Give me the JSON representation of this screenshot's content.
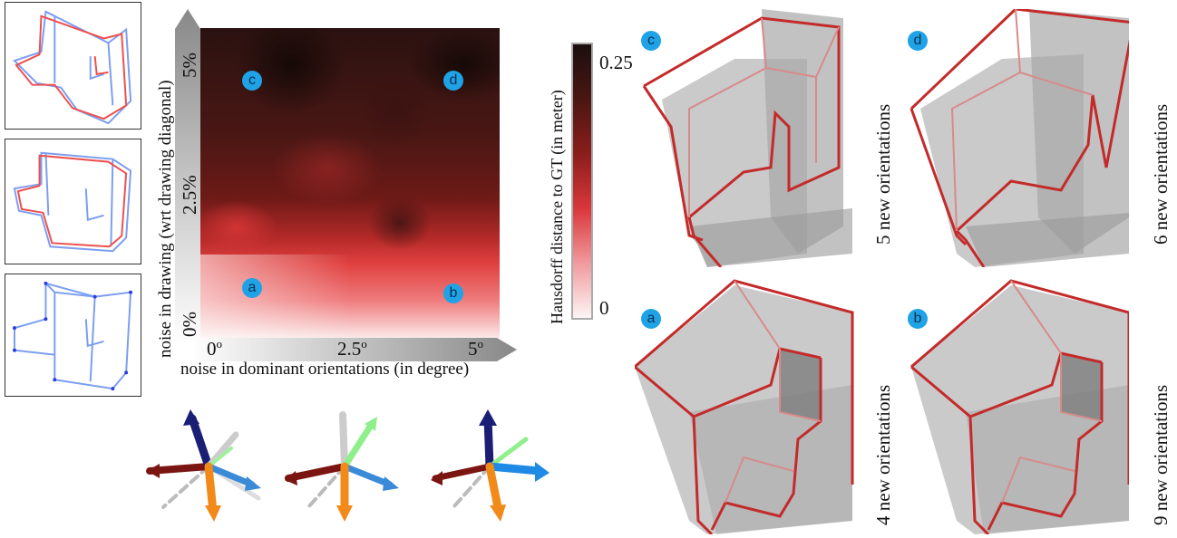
{
  "heatmap": {
    "y_axis_label": "noise in drawing (wrt drawing diagonal)",
    "x_axis_label": "noise in dominant orientations (in degree)",
    "y_ticks": [
      "0%",
      "2.5%",
      "5%"
    ],
    "x_ticks": [
      {
        "base": "0",
        "sup": "o"
      },
      {
        "base": "2.5",
        "sup": "o"
      },
      {
        "base": "5",
        "sup": "o"
      }
    ],
    "colorbar_label": "Hausdorff distance to GT (in meter)",
    "colorbar_max": "0.25",
    "colorbar_min": "0",
    "colors": {
      "dark": "#1a0f0e",
      "mid": "#d8373a",
      "light": "#fdf5f5",
      "marker": "#1fa3e6"
    },
    "markers": [
      "a",
      "b",
      "c",
      "d"
    ]
  },
  "panels": [
    {
      "marker": "c",
      "caption": "5 new orientations"
    },
    {
      "marker": "d",
      "caption": "6 new orientations"
    },
    {
      "marker": "a",
      "caption": "4 new orientations"
    },
    {
      "marker": "b",
      "caption": "9 new orientations"
    }
  ],
  "thumbnails": [
    "drawing-noisy-1",
    "drawing-noisy-2",
    "drawing-clean"
  ],
  "axis_glyphs": [
    "orientation-gizmo-0deg",
    "orientation-gizmo-2.5deg",
    "orientation-gizmo-5deg"
  ]
}
